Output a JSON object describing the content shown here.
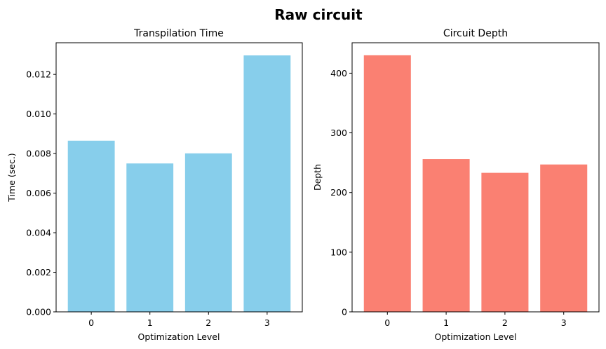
{
  "figure": {
    "suptitle": "Raw circuit"
  },
  "chart_data": [
    {
      "type": "bar",
      "title": "Transpilation Time",
      "xlabel": "Optimization Level",
      "ylabel": "Time (sec.)",
      "categories": [
        "0",
        "1",
        "2",
        "3"
      ],
      "values": [
        0.00865,
        0.0075,
        0.00801,
        0.01296
      ],
      "ylim": [
        0,
        0.0136
      ],
      "yticks": [
        0.0,
        0.002,
        0.004,
        0.006,
        0.008,
        0.01,
        0.012
      ],
      "ytick_labels": [
        "0.000",
        "0.002",
        "0.004",
        "0.006",
        "0.008",
        "0.010",
        "0.012"
      ],
      "color": "#87ceeb",
      "grid": false
    },
    {
      "type": "bar",
      "title": "Circuit Depth",
      "xlabel": "Optimization Level",
      "ylabel": "Depth",
      "categories": [
        "0",
        "1",
        "2",
        "3"
      ],
      "values": [
        430,
        256,
        233,
        247
      ],
      "ylim": [
        0,
        451
      ],
      "yticks": [
        0,
        100,
        200,
        300,
        400
      ],
      "ytick_labels": [
        "0",
        "100",
        "200",
        "300",
        "400"
      ],
      "color": "#fa8072",
      "grid": false
    }
  ]
}
